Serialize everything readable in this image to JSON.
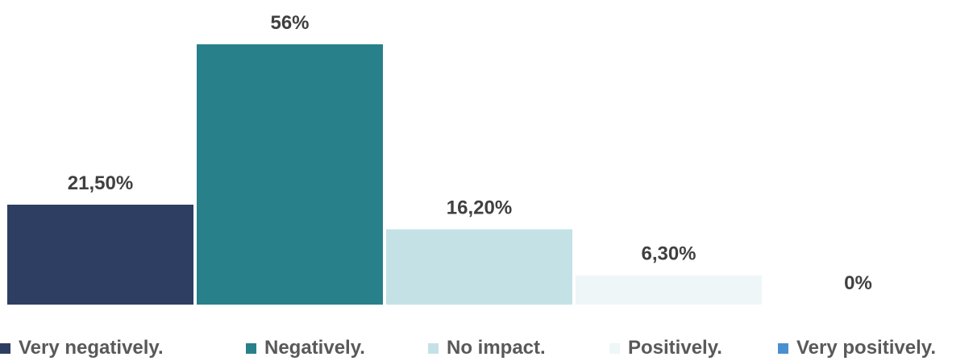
{
  "chart_data": {
    "type": "bar",
    "categories": [
      "Very negatively.",
      "Negatively.",
      "No impact.",
      "Positively.",
      "Very positively."
    ],
    "values": [
      21.5,
      56,
      16.2,
      6.3,
      0
    ],
    "value_labels": [
      "21,50%",
      "56%",
      "16,20%",
      "6,30%",
      "0%"
    ],
    "colors": [
      "#2e3d62",
      "#27808a",
      "#c4e2e6",
      "#eef6f8",
      "#4a90d0"
    ],
    "ylim": [
      0,
      60
    ],
    "grid": false,
    "legend": "bottom",
    "title": "",
    "xlabel": "",
    "ylabel": ""
  }
}
